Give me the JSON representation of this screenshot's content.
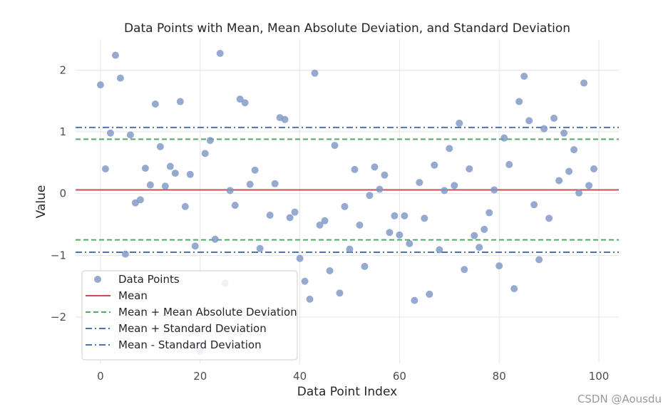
{
  "chart_data": {
    "type": "scatter",
    "title": "Data Points with Mean, Mean Absolute Deviation, and Standard Deviation",
    "xlabel": "Data Point Index",
    "ylabel": "Value",
    "xlim": [
      -5,
      104
    ],
    "ylim": [
      -2.75,
      2.5
    ],
    "xticks": [
      0,
      20,
      40,
      60,
      80,
      100
    ],
    "yticks": [
      -2,
      -1,
      0,
      1,
      2
    ],
    "xtick_labels": [
      "0",
      "20",
      "40",
      "60",
      "80",
      "100"
    ],
    "ytick_labels": [
      "−2",
      "−1",
      "0",
      "1",
      "2"
    ],
    "grid": true,
    "legend_position": "lower-left",
    "colors": {
      "points": "#7f97c6",
      "mean": "#c44e52",
      "mad": "#55a868",
      "std": "#4c72b0",
      "grid": "#e6e6e6",
      "frame": "#e6e6e6"
    },
    "series": [
      {
        "name": "Data Points",
        "kind": "scatter",
        "x": [
          0,
          1,
          2,
          3,
          4,
          5,
          6,
          7,
          8,
          9,
          10,
          11,
          12,
          13,
          14,
          15,
          16,
          17,
          18,
          19,
          20,
          21,
          22,
          23,
          24,
          25,
          26,
          27,
          28,
          29,
          30,
          31,
          32,
          33,
          34,
          35,
          36,
          37,
          38,
          39,
          40,
          41,
          42,
          43,
          44,
          45,
          46,
          47,
          48,
          49,
          50,
          51,
          52,
          53,
          54,
          55,
          56,
          57,
          58,
          59,
          60,
          61,
          62,
          63,
          64,
          65,
          66,
          67,
          68,
          69,
          70,
          71,
          72,
          73,
          74,
          75,
          76,
          77,
          78,
          79,
          80,
          81,
          82,
          83,
          84,
          85,
          86,
          87,
          88,
          89,
          90,
          91,
          92,
          93,
          94,
          95,
          96,
          97,
          98,
          99
        ],
        "y": [
          1.76,
          0.4,
          0.98,
          2.24,
          1.87,
          -0.98,
          0.95,
          -0.15,
          -0.1,
          0.41,
          0.14,
          1.45,
          0.76,
          0.12,
          0.44,
          0.33,
          1.49,
          -0.21,
          0.31,
          -0.85,
          -2.55,
          0.65,
          0.86,
          -0.74,
          2.27,
          -1.45,
          0.05,
          -0.19,
          1.53,
          1.47,
          0.15,
          0.38,
          -0.89,
          -1.98,
          -0.35,
          0.16,
          1.23,
          1.2,
          -0.39,
          -0.3,
          -1.05,
          -1.42,
          -1.71,
          1.95,
          -0.51,
          -0.44,
          -1.25,
          0.78,
          -1.61,
          -0.21,
          -0.9,
          0.39,
          -0.51,
          -1.18,
          -0.03,
          0.43,
          0.07,
          0.3,
          -0.63,
          -0.36,
          -0.67,
          -0.36,
          -0.81,
          -1.73,
          0.18,
          -0.4,
          -1.63,
          0.46,
          -0.91,
          0.05,
          0.73,
          0.13,
          1.14,
          -1.23,
          0.4,
          -0.68,
          -0.87,
          -0.58,
          -0.31,
          0.06,
          -1.17,
          0.9,
          0.47,
          -1.54,
          1.49,
          1.9,
          1.18,
          -0.18,
          -1.07,
          1.05,
          -0.4,
          1.22,
          0.21,
          0.98,
          0.36,
          0.71,
          0.01,
          1.79,
          0.13,
          0.4
        ]
      },
      {
        "name": "Mean",
        "kind": "hline",
        "y": 0.06,
        "style": "solid",
        "color": "#c44e52"
      },
      {
        "name": "Mean + Mean Absolute Deviation",
        "kind": "hline",
        "y": 0.88,
        "style": "dashed",
        "color": "#55a868",
        "legend": true
      },
      {
        "name": "Mean - Mean Absolute Deviation",
        "kind": "hline",
        "y": -0.75,
        "style": "dashed",
        "color": "#55a868",
        "legend": false
      },
      {
        "name": "Mean + Standard Deviation",
        "kind": "hline",
        "y": 1.07,
        "style": "dashdot",
        "color": "#4c72b0",
        "legend": true
      },
      {
        "name": "Mean - Standard Deviation",
        "kind": "hline",
        "y": -0.95,
        "style": "dashdot",
        "color": "#4c72b0",
        "legend": true
      }
    ],
    "legend": [
      {
        "label": "Data Points",
        "symbol": "marker",
        "color": "#7f97c6"
      },
      {
        "label": "Mean",
        "symbol": "solid",
        "color": "#c44e52"
      },
      {
        "label": "Mean + Mean Absolute Deviation",
        "symbol": "dashed",
        "color": "#55a868"
      },
      {
        "label": "Mean + Standard Deviation",
        "symbol": "dashdot",
        "color": "#4c72b0"
      },
      {
        "label": "Mean - Standard Deviation",
        "symbol": "dashdot",
        "color": "#4c72b0"
      }
    ]
  },
  "watermark": "CSDN @Aousdu"
}
